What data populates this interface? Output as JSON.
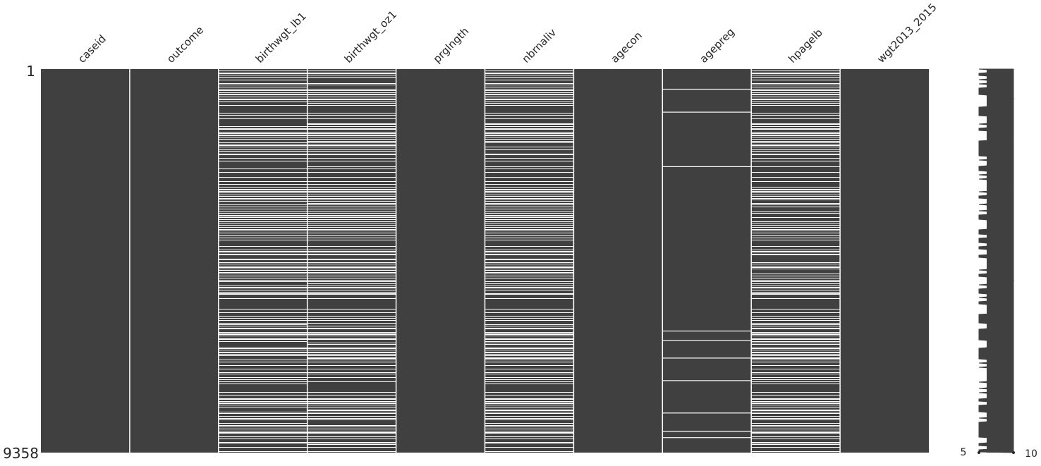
{
  "chart_data": {
    "type": "heatmap",
    "title": "",
    "n_rows": 9358,
    "row_labels": [
      "1",
      "9358"
    ],
    "columns": [
      "caseid",
      "outcome",
      "birthwgt_lb1",
      "birthwgt_oz1",
      "prglngth",
      "nbrnaliv",
      "agecon",
      "agepreg",
      "hpagelb",
      "wgt2013_2015"
    ],
    "complete": [
      true,
      true,
      false,
      false,
      true,
      false,
      true,
      false,
      false,
      true
    ],
    "missing_ratio": [
      0,
      0,
      0.3,
      0.3,
      0,
      0.3,
      0,
      0.04,
      0.3,
      0
    ],
    "agepreg_missing_rows": [
      490,
      1050,
      2380,
      6390,
      6620,
      7050,
      7600,
      8390,
      8840,
      8990
    ],
    "sparkline": {
      "min_label": "5",
      "max_label": "10",
      "min": 5,
      "max": 10
    },
    "colors": {
      "filled": "#404040",
      "missing": "#ffffff",
      "background": "#ffffff"
    }
  }
}
